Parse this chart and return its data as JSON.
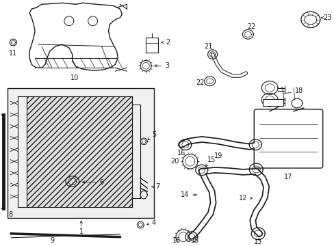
{
  "bg_color": "#ffffff",
  "line_color": "#1a1a1a",
  "label_color": "#1a1a1a",
  "figsize": [
    4.89,
    3.6
  ],
  "dpi": 100
}
